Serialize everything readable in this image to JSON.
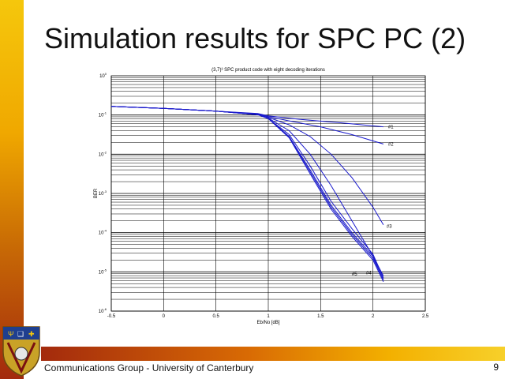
{
  "slide": {
    "title": "Simulation results for SPC PC (2)",
    "footer": "Communications Group - University of Canterbury",
    "page_number": "9"
  },
  "colors": {
    "curve": "#1a1acc",
    "left_bar_top": "#f5c70c",
    "left_bar_bottom": "#a32a0d",
    "bottom_bar_left": "#a32a0d",
    "bottom_bar_right": "#f7d02a"
  },
  "logo": {
    "name": "university-crest"
  },
  "chart_data": {
    "type": "line",
    "title": "(3,7)³ SPC product code with eight decoding iterations",
    "xlabel": "Eb/No [dB]",
    "ylabel": "BER",
    "xlim": [
      -0.5,
      2.5
    ],
    "ylim_log10": [
      -6,
      0
    ],
    "yscale": "log",
    "grid": true,
    "xticks": [
      -0.5,
      0,
      0.5,
      1,
      1.5,
      2,
      2.5
    ],
    "xtick_labels": [
      "-0.5",
      "0",
      "0.5",
      "1",
      "1.5",
      "2",
      "2.5"
    ],
    "ytick_exponents": [
      0,
      -1,
      -2,
      -3,
      -4,
      -5,
      -6
    ],
    "series": [
      {
        "name": "#1",
        "x": [
          -0.5,
          0,
          0.5,
          0.9,
          1.0,
          1.3,
          1.7,
          2.1
        ],
        "log10_y": [
          -0.78,
          -0.83,
          -0.9,
          -0.96,
          -1.02,
          -1.11,
          -1.2,
          -1.3
        ]
      },
      {
        "name": "#2",
        "x": [
          -0.5,
          0,
          0.5,
          0.9,
          1.0,
          1.2,
          1.5,
          1.8,
          2.1
        ],
        "log10_y": [
          -0.78,
          -0.83,
          -0.9,
          -0.97,
          -1.04,
          -1.15,
          -1.3,
          -1.5,
          -1.74
        ]
      },
      {
        "name": "#3",
        "x": [
          -0.5,
          0,
          0.5,
          0.9,
          1.0,
          1.2,
          1.4,
          1.6,
          1.8,
          2.0,
          2.1
        ],
        "log10_y": [
          -0.78,
          -0.83,
          -0.9,
          -0.98,
          -1.06,
          -1.25,
          -1.55,
          -2.0,
          -2.6,
          -3.35,
          -3.8
        ]
      },
      {
        "name": "#4",
        "x": [
          -0.5,
          0,
          0.5,
          0.9,
          1.0,
          1.2,
          1.4,
          1.6,
          1.8,
          2.0,
          2.1
        ],
        "log10_y": [
          -0.78,
          -0.83,
          -0.9,
          -0.99,
          -1.08,
          -1.4,
          -2.0,
          -2.8,
          -3.7,
          -4.6,
          -5.1
        ]
      },
      {
        "name": "#5",
        "x": [
          -0.5,
          0,
          0.5,
          0.9,
          1.0,
          1.2,
          1.4,
          1.6,
          1.8,
          2.0,
          2.1
        ],
        "log10_y": [
          -0.78,
          -0.83,
          -0.9,
          -0.99,
          -1.09,
          -1.5,
          -2.3,
          -3.2,
          -3.9,
          -4.55,
          -5.15
        ]
      },
      {
        "name": "",
        "x": [
          -0.5,
          0,
          0.5,
          0.9,
          1.0,
          1.2,
          1.4,
          1.6,
          1.8,
          2.0,
          2.1
        ],
        "log10_y": [
          -0.78,
          -0.83,
          -0.9,
          -0.99,
          -1.09,
          -1.55,
          -2.4,
          -3.3,
          -4.0,
          -4.6,
          -5.2
        ]
      },
      {
        "name": "",
        "x": [
          -0.5,
          0,
          0.5,
          0.9,
          1.0,
          1.2,
          1.4,
          1.6,
          1.8,
          2.0,
          2.1
        ],
        "log10_y": [
          -0.78,
          -0.83,
          -0.9,
          -0.99,
          -1.09,
          -1.57,
          -2.45,
          -3.35,
          -4.05,
          -4.65,
          -5.2
        ]
      },
      {
        "name": "",
        "x": [
          -0.5,
          0,
          0.5,
          0.9,
          1.0,
          1.2,
          1.4,
          1.6,
          1.8,
          2.0,
          2.1
        ],
        "log10_y": [
          -0.78,
          -0.83,
          -0.9,
          -0.99,
          -1.09,
          -1.58,
          -2.5,
          -3.4,
          -4.1,
          -4.7,
          -5.25
        ]
      }
    ]
  }
}
